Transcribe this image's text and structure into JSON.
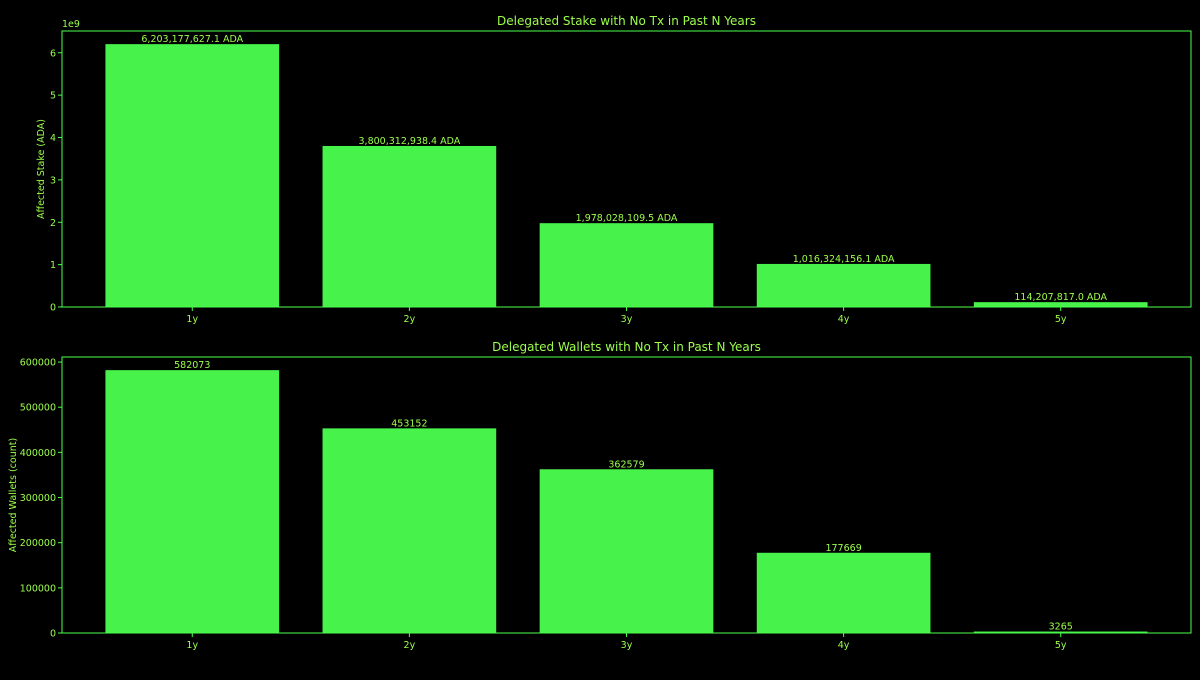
{
  "colors": {
    "background": "#000000",
    "accent": "#4cff4c",
    "bar_fill": "#47f24b",
    "text": "#9cff4c"
  },
  "chart_data": [
    {
      "type": "bar",
      "title": "Delegated Stake with No Tx in Past N Years",
      "xlabel": "",
      "ylabel": "Affected Stake (ADA)",
      "y_offset_label": "1e9",
      "categories": [
        "1y",
        "2y",
        "3y",
        "4y",
        "5y"
      ],
      "values": [
        6203177627.1,
        3800312938.4,
        1978028109.5,
        1016324156.1,
        114207817.0
      ],
      "data_labels": [
        "6,203,177,627.1 ADA",
        "3,800,312,938.4 ADA",
        "1,978,028,109.5 ADA",
        "1,016,324,156.1 ADA",
        "114,207,817.0 ADA"
      ],
      "ylim": [
        0,
        6513336508.5
      ],
      "y_ticks": [
        0,
        1000000000,
        2000000000,
        3000000000,
        4000000000,
        5000000000,
        6000000000
      ],
      "y_tick_labels": [
        "0",
        "1",
        "2",
        "3",
        "4",
        "5",
        "6"
      ],
      "grid": false,
      "legend": "none"
    },
    {
      "type": "bar",
      "title": "Delegated Wallets with No Tx in Past N Years",
      "xlabel": "",
      "ylabel": "Affected Wallets (count)",
      "categories": [
        "1y",
        "2y",
        "3y",
        "4y",
        "5y"
      ],
      "values": [
        582073,
        453152,
        362579,
        177669,
        3265
      ],
      "data_labels": [
        "582073",
        "453152",
        "362579",
        "177669",
        "3265"
      ],
      "ylim": [
        0,
        611176.65
      ],
      "y_ticks": [
        0,
        100000,
        200000,
        300000,
        400000,
        500000,
        600000
      ],
      "y_tick_labels": [
        "0",
        "100000",
        "200000",
        "300000",
        "400000",
        "500000",
        "600000"
      ],
      "grid": false,
      "legend": "none"
    }
  ]
}
